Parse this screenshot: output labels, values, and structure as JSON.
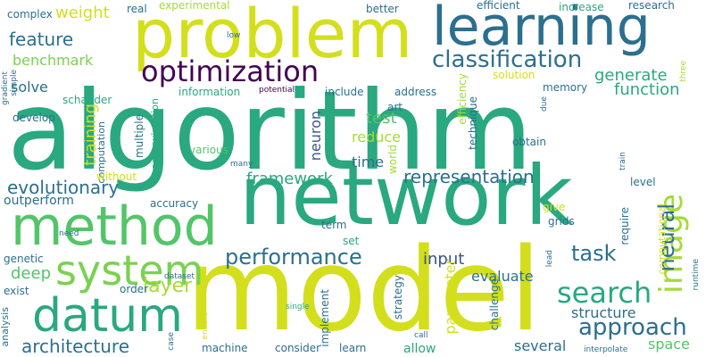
{
  "colors": {
    "background": "#ffffff",
    "palette": [
      "#440154",
      "#3b528b",
      "#21918c",
      "#2a9d7a",
      "#5ec962",
      "#a5db36",
      "#d6e21a",
      "#fde725"
    ]
  },
  "words": [
    {
      "text": "algorithm",
      "color": "#2aa87f"
    },
    {
      "text": "model",
      "color": "#d3df1c"
    },
    {
      "text": "network",
      "color": "#2aa87f"
    },
    {
      "text": "problem",
      "color": "#d3df1c"
    },
    {
      "text": "learning",
      "color": "#2c6f8e"
    },
    {
      "text": "method",
      "color": "#52c569"
    },
    {
      "text": "datum",
      "color": "#2aa87f"
    },
    {
      "text": "system",
      "color": "#7ad151"
    },
    {
      "text": "optimization",
      "color": "#440154"
    },
    {
      "text": "image",
      "color": "#a5db36"
    },
    {
      "text": "search",
      "color": "#2aa87f"
    },
    {
      "text": "classification",
      "color": "#2c6f8e"
    },
    {
      "text": "approach",
      "color": "#2c6f8e"
    },
    {
      "text": "performance",
      "color": "#2c6f8e"
    },
    {
      "text": "task",
      "color": "#2c6f8e"
    },
    {
      "text": "neural",
      "color": "#2c6f8e"
    },
    {
      "text": "layer",
      "color": "#a5db36"
    },
    {
      "text": "representation",
      "color": "#2c6f8e"
    },
    {
      "text": "evolutionary",
      "color": "#2c6f8e"
    },
    {
      "text": "architecture",
      "color": "#2c6f8e"
    },
    {
      "text": "feature",
      "color": "#2c6f8e"
    },
    {
      "text": "framework",
      "color": "#2aa87f"
    },
    {
      "text": "generate",
      "color": "#2aa87f"
    },
    {
      "text": "function",
      "color": "#2aa87f"
    },
    {
      "text": "weight",
      "color": "#d3df1c"
    },
    {
      "text": "benchmark",
      "color": "#7ad151"
    },
    {
      "text": "solve",
      "color": "#2c6f8e"
    },
    {
      "text": "training",
      "color": "#d3df1c"
    },
    {
      "text": "input",
      "color": "#3b528b"
    },
    {
      "text": "deep",
      "color": "#52c569"
    },
    {
      "text": "parameter",
      "color": "#d3df1c"
    },
    {
      "text": "structure",
      "color": "#2c6f8e"
    },
    {
      "text": "evaluate",
      "color": "#2c6f8e"
    },
    {
      "text": "reduce",
      "color": "#a5db36"
    },
    {
      "text": "test",
      "color": "#52c569"
    },
    {
      "text": "time",
      "color": "#2c6f8e"
    },
    {
      "text": "space",
      "color": "#52c569"
    },
    {
      "text": "outperform",
      "color": "#2c6f8e"
    },
    {
      "text": "neuron",
      "color": "#3b528b"
    },
    {
      "text": "several",
      "color": "#2c6f8e"
    },
    {
      "text": "efficient",
      "color": "#2c6f8e"
    },
    {
      "text": "increase",
      "color": "#2aa87f"
    },
    {
      "text": "research",
      "color": "#2c6f8e"
    },
    {
      "text": "experimental",
      "color": "#a5db36"
    },
    {
      "text": "better",
      "color": "#2c6f8e"
    },
    {
      "text": "real",
      "color": "#2c6f8e"
    },
    {
      "text": "complex",
      "color": "#2c6f8e"
    },
    {
      "text": "low",
      "color": "#2c6f8e"
    },
    {
      "text": "schauder",
      "color": "#2aa87f"
    },
    {
      "text": "information",
      "color": "#2aa87f"
    },
    {
      "text": "potential",
      "color": "#440154"
    },
    {
      "text": "include",
      "color": "#2c6f8e"
    },
    {
      "text": "address",
      "color": "#2c6f8e"
    },
    {
      "text": "efficiency",
      "color": "#a5db36"
    },
    {
      "text": "solution",
      "color": "#d3df1c"
    },
    {
      "text": "memory",
      "color": "#2c6f8e"
    },
    {
      "text": "due",
      "color": "#2c6f8e"
    },
    {
      "text": "three",
      "color": "#a5db36"
    },
    {
      "text": "art",
      "color": "#2c6f8e"
    },
    {
      "text": "world",
      "color": "#a5db36"
    },
    {
      "text": "technique",
      "color": "#2c6f8e"
    },
    {
      "text": "obtain",
      "color": "#2c6f8e"
    },
    {
      "text": "develop",
      "color": "#2c6f8e"
    },
    {
      "text": "computation",
      "color": "#2c6f8e"
    },
    {
      "text": "multiple",
      "color": "#2c6f8e"
    },
    {
      "text": "approximation",
      "color": "#2aa87f"
    },
    {
      "text": "various",
      "color": "#52c569"
    },
    {
      "text": "many",
      "color": "#2c6f8e"
    },
    {
      "text": "without",
      "color": "#d3df1c"
    },
    {
      "text": "train",
      "color": "#2c6f8e"
    },
    {
      "text": "level",
      "color": "#2c6f8e"
    },
    {
      "text": "computational",
      "color": "#d3df1c"
    },
    {
      "text": "give",
      "color": "#d3df1c"
    },
    {
      "text": "grids",
      "color": "#2c6f8e"
    },
    {
      "text": "require",
      "color": "#2c6f8e"
    },
    {
      "text": "accuracy",
      "color": "#2c6f8e"
    },
    {
      "text": "term",
      "color": "#2c6f8e"
    },
    {
      "text": "set",
      "color": "#2aa87f"
    },
    {
      "text": "need",
      "color": "#2c6f8e"
    },
    {
      "text": "genetic",
      "color": "#2c6f8e"
    },
    {
      "text": "order",
      "color": "#2c6f8e"
    },
    {
      "text": "dataset",
      "color": "#2c6f8e"
    },
    {
      "text": "exist",
      "color": "#2c6f8e"
    },
    {
      "text": "implement",
      "color": "#2c6f8e"
    },
    {
      "text": "strategy",
      "color": "#2c6f8e"
    },
    {
      "text": "challenge",
      "color": "#2c6f8e"
    },
    {
      "text": "lead",
      "color": "#2c6f8e"
    },
    {
      "text": "runtime",
      "color": "#2c6f8e"
    },
    {
      "text": "analysis",
      "color": "#2c6f8e"
    },
    {
      "text": "single",
      "color": "#2aa87f"
    },
    {
      "text": "enable",
      "color": "#d3df1c"
    },
    {
      "text": "case",
      "color": "#2c6f8e"
    },
    {
      "text": "machine",
      "color": "#2c6f8e"
    },
    {
      "text": "consider",
      "color": "#2c6f8e"
    },
    {
      "text": "learn",
      "color": "#2c6f8e"
    },
    {
      "text": "allow",
      "color": "#2aa87f"
    },
    {
      "text": "call",
      "color": "#2c6f8e"
    },
    {
      "text": "interpolate",
      "color": "#2c6f8e"
    },
    {
      "text": "gradient",
      "color": "#2c6f8e"
    },
    {
      "text": "simple",
      "color": "#2c6f8e"
    }
  ]
}
